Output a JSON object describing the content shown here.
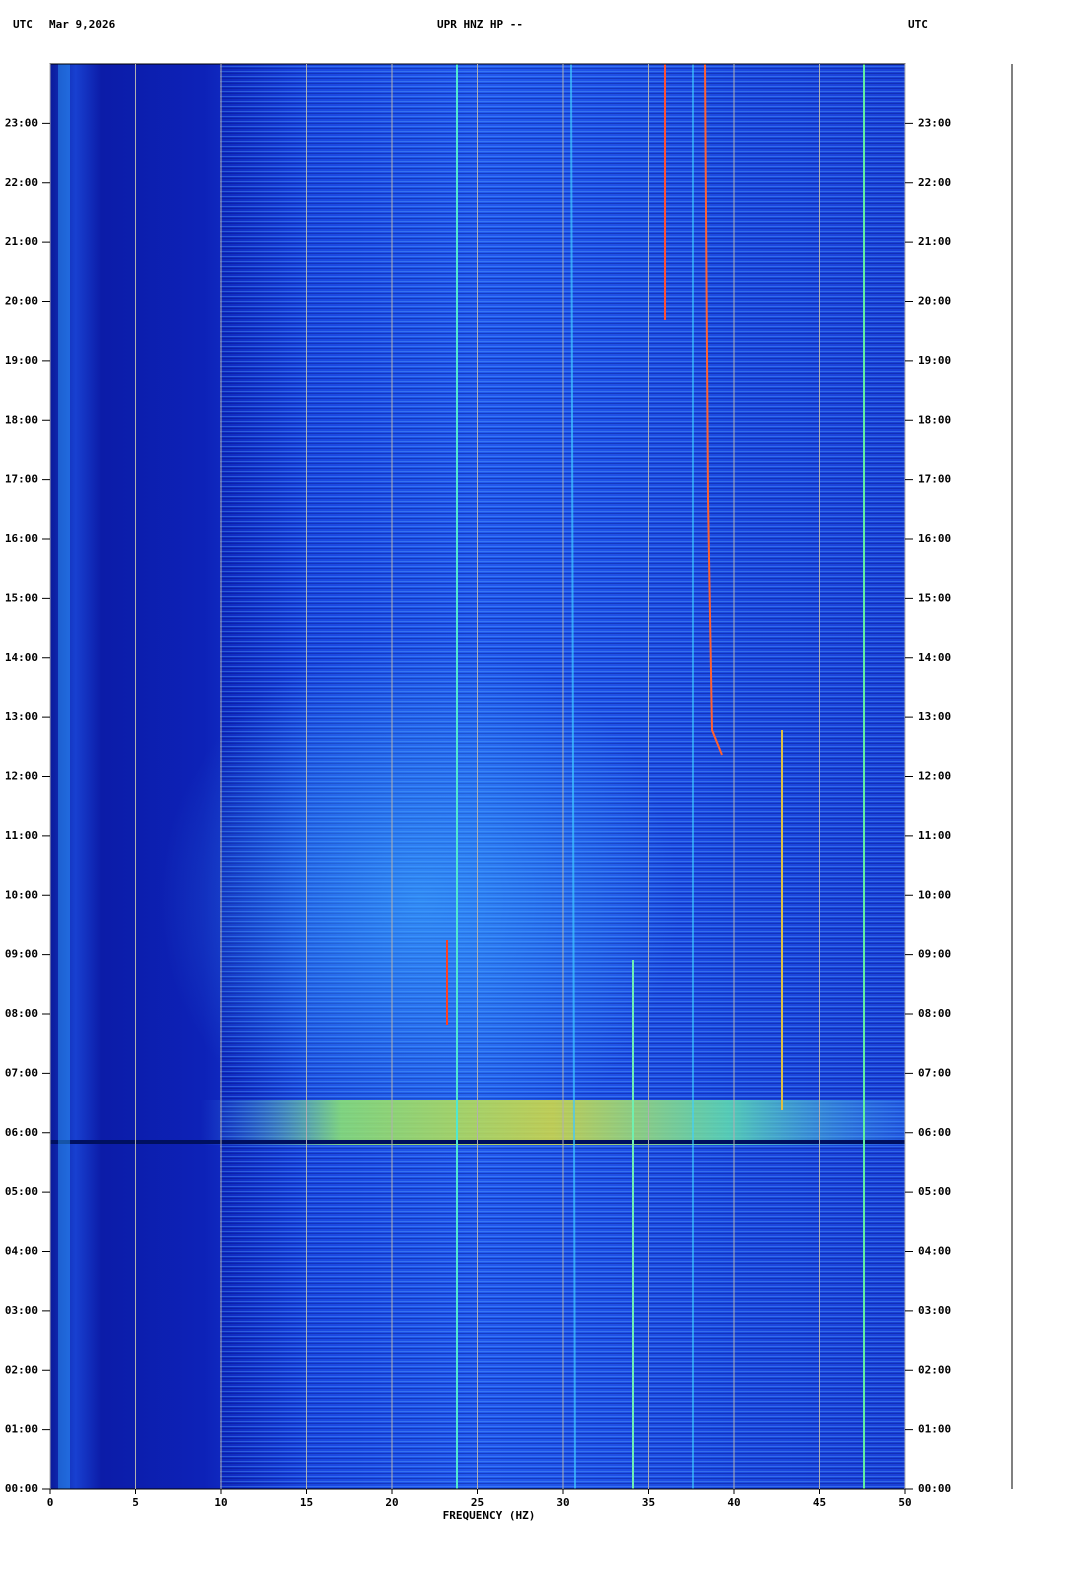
{
  "chart_data": {
    "type": "spectrogram",
    "timezone_left": "UTC",
    "date": "Mar 9,2026",
    "title": "UPR HNZ HP --",
    "timezone_right": "UTC",
    "xlabel": "FREQUENCY (HZ)",
    "xlim": [
      0,
      50
    ],
    "xticks": [
      0,
      5,
      10,
      15,
      20,
      25,
      30,
      35,
      40,
      45,
      50
    ],
    "ylim": [
      0,
      24
    ],
    "yticks": [
      {
        "value": 0,
        "label": "00:00"
      },
      {
        "value": 1,
        "label": "01:00"
      },
      {
        "value": 2,
        "label": "02:00"
      },
      {
        "value": 3,
        "label": "03:00"
      },
      {
        "value": 4,
        "label": "04:00"
      },
      {
        "value": 5,
        "label": "05:00"
      },
      {
        "value": 6,
        "label": "06:00"
      },
      {
        "value": 7,
        "label": "07:00"
      },
      {
        "value": 8,
        "label": "08:00"
      },
      {
        "value": 9,
        "label": "09:00"
      },
      {
        "value": 10,
        "label": "10:00"
      },
      {
        "value": 11,
        "label": "11:00"
      },
      {
        "value": 12,
        "label": "12:00"
      },
      {
        "value": 13,
        "label": "13:00"
      },
      {
        "value": 14,
        "label": "14:00"
      },
      {
        "value": 15,
        "label": "15:00"
      },
      {
        "value": 16,
        "label": "16:00"
      },
      {
        "value": 17,
        "label": "17:00"
      },
      {
        "value": 18,
        "label": "18:00"
      },
      {
        "value": 19,
        "label": "19:00"
      },
      {
        "value": 20,
        "label": "20:00"
      },
      {
        "value": 21,
        "label": "21:00"
      },
      {
        "value": 22,
        "label": "22:00"
      },
      {
        "value": 23,
        "label": "23:00"
      }
    ],
    "grid": true
  }
}
